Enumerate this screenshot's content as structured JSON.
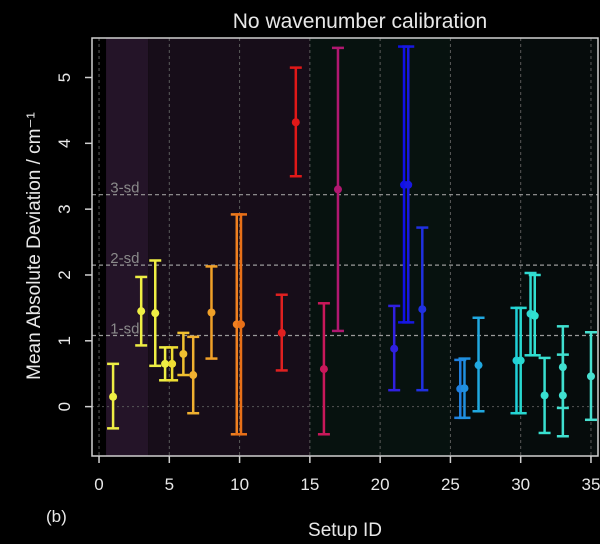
{
  "chart_data": {
    "type": "scatter",
    "title": "No wavenumber calibration",
    "xlabel": "Setup ID",
    "ylabel": "Mean Absolute Deviation / cm⁻¹",
    "panel_label": "(b)",
    "xlim": [
      -0.5,
      35.5
    ],
    "ylim": [
      -0.75,
      5.6
    ],
    "x_ticks": [
      0,
      5,
      10,
      15,
      20,
      25,
      30,
      35
    ],
    "y_ticks": [
      0,
      1,
      2,
      3,
      4,
      5
    ],
    "grid": "vertical-dashed",
    "reference_lines": [
      {
        "label": "1-sd",
        "y": 1.08
      },
      {
        "label": "2-sd",
        "y": 2.15
      },
      {
        "label": "3-sd",
        "y": 3.22
      }
    ],
    "background_bands": [
      {
        "x0": 0.5,
        "x1": 3.5,
        "color": "#241428"
      },
      {
        "x0": 3.5,
        "x1": 15,
        "color": "#170d19"
      },
      {
        "x0": 15,
        "x1": 25,
        "color": "#07120f"
      },
      {
        "x0": 25,
        "x1": 35.5,
        "color": "#060c0c"
      }
    ],
    "points": [
      {
        "x": 1,
        "y": 0.15,
        "lo": -0.33,
        "hi": 0.65,
        "color": "#eeee44"
      },
      {
        "x": 3,
        "y": 1.45,
        "lo": 0.93,
        "hi": 1.97,
        "color": "#eeee44"
      },
      {
        "x": 4,
        "y": 1.42,
        "lo": 0.62,
        "hi": 2.22,
        "color": "#eeee44"
      },
      {
        "x": 4.7,
        "y": 0.65,
        "lo": 0.4,
        "hi": 0.9,
        "color": "#eeee44"
      },
      {
        "x": 5.2,
        "y": 0.65,
        "lo": 0.4,
        "hi": 0.9,
        "color": "#eedd33"
      },
      {
        "x": 6,
        "y": 0.8,
        "lo": 0.48,
        "hi": 1.12,
        "color": "#f0c030"
      },
      {
        "x": 6.7,
        "y": 0.48,
        "lo": -0.1,
        "hi": 1.06,
        "color": "#f0b030"
      },
      {
        "x": 8,
        "y": 1.43,
        "lo": 0.73,
        "hi": 2.13,
        "color": "#f0a028"
      },
      {
        "x": 9.8,
        "y": 1.25,
        "lo": -0.42,
        "hi": 2.92,
        "color": "#f08020"
      },
      {
        "x": 10.1,
        "y": 1.25,
        "lo": -0.42,
        "hi": 2.92,
        "color": "#e87018"
      },
      {
        "x": 13,
        "y": 1.12,
        "lo": 0.55,
        "hi": 1.7,
        "color": "#e02020"
      },
      {
        "x": 14,
        "y": 4.32,
        "lo": 3.5,
        "hi": 5.15,
        "color": "#e01818"
      },
      {
        "x": 16,
        "y": 0.57,
        "lo": -0.42,
        "hi": 1.57,
        "color": "#c8185a"
      },
      {
        "x": 17,
        "y": 3.3,
        "lo": 1.15,
        "hi": 5.45,
        "color": "#b01870"
      },
      {
        "x": 21,
        "y": 0.88,
        "lo": 0.25,
        "hi": 1.53,
        "color": "#3020e0"
      },
      {
        "x": 21.7,
        "y": 3.37,
        "lo": 1.28,
        "hi": 5.47,
        "color": "#1010e8"
      },
      {
        "x": 22,
        "y": 3.37,
        "lo": 1.28,
        "hi": 5.47,
        "color": "#1818e0"
      },
      {
        "x": 23,
        "y": 1.48,
        "lo": 0.25,
        "hi": 2.72,
        "color": "#2030e0"
      },
      {
        "x": 25.7,
        "y": 0.27,
        "lo": -0.17,
        "hi": 0.71,
        "color": "#2080e0"
      },
      {
        "x": 26,
        "y": 0.28,
        "lo": -0.17,
        "hi": 0.73,
        "color": "#2090e0"
      },
      {
        "x": 27,
        "y": 0.63,
        "lo": -0.07,
        "hi": 1.35,
        "color": "#20a8e0"
      },
      {
        "x": 29.7,
        "y": 0.7,
        "lo": -0.1,
        "hi": 1.5,
        "color": "#20d0d8"
      },
      {
        "x": 30,
        "y": 0.7,
        "lo": -0.1,
        "hi": 1.5,
        "color": "#28d8d0"
      },
      {
        "x": 30.7,
        "y": 1.41,
        "lo": 0.78,
        "hi": 2.03,
        "color": "#30d8d0"
      },
      {
        "x": 31,
        "y": 1.38,
        "lo": 0.78,
        "hi": 2.0,
        "color": "#30e0d0"
      },
      {
        "x": 31.7,
        "y": 0.17,
        "lo": -0.4,
        "hi": 0.74,
        "color": "#38e0d0"
      },
      {
        "x": 33,
        "y": 0.17,
        "lo": -0.45,
        "hi": 0.79,
        "color": "#40e0d0"
      },
      {
        "x": 33,
        "y": 0.6,
        "lo": -0.02,
        "hi": 1.22,
        "color": "#40e0d0"
      },
      {
        "x": 35,
        "y": 0.46,
        "lo": -0.2,
        "hi": 1.13,
        "color": "#48e0d0"
      }
    ]
  }
}
